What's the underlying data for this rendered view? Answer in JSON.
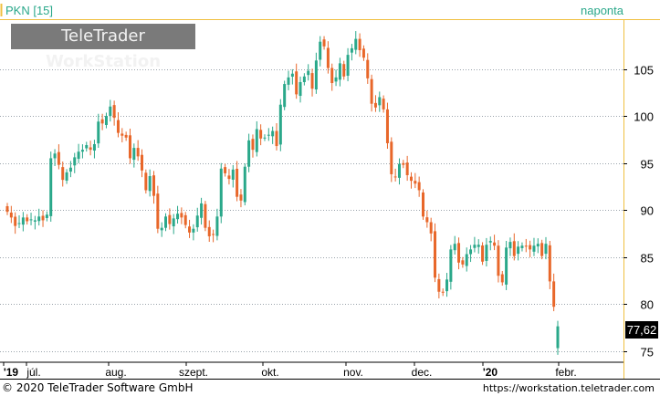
{
  "header": {
    "instrument_label": "PKN [15]",
    "period_label": "naponta"
  },
  "watermark": {
    "brand_regular": "TeleTrader",
    "brand_bold": "WorkStation"
  },
  "footer": {
    "copyright": "© 2020 TeleTrader Software GmbH",
    "url": "https://workstation.teletrader.com"
  },
  "colors": {
    "up": "#2aa88a",
    "down": "#e8672a",
    "grid": "#9aa3ab",
    "axis_border": "#f0c040",
    "last_price_bg": "#000000"
  },
  "chart_data": {
    "type": "candlestick",
    "title": "",
    "instrument": "PKN [15]",
    "interval": "naponta",
    "x_tick_labels": [
      "'19",
      "júl.",
      "aug.",
      "szept.",
      "okt.",
      "nov.",
      "dec.",
      "'20",
      "febr."
    ],
    "y_ticks": [
      75,
      80,
      85,
      90,
      95,
      100,
      105
    ],
    "ylim": [
      73.8,
      110.2
    ],
    "last_price": "77,62",
    "grid": true,
    "y_axis_side": "right",
    "close": [
      89.8,
      89.2,
      88.3,
      88.6,
      89.2,
      88.8,
      89.0,
      88.9,
      89.3,
      88.9,
      89.5,
      95.5,
      96.0,
      94.8,
      93.2,
      94.0,
      94.5,
      95.6,
      96.2,
      96.4,
      96.9,
      96.4,
      97.0,
      99.4,
      99.2,
      100.0,
      101.0,
      99.8,
      98.2,
      97.9,
      97.7,
      95.5,
      96.6,
      95.7,
      94.2,
      92.1,
      93.6,
      91.5,
      88.0,
      88.1,
      89.3,
      88.5,
      89.1,
      89.6,
      89.2,
      88.4,
      87.6,
      88.0,
      89.4,
      90.7,
      88.1,
      87.2,
      87.4,
      89.3,
      94.4,
      93.9,
      93.3,
      94.3,
      91.4,
      91.0,
      94.6,
      97.4,
      96.4,
      98.6,
      97.6,
      97.7,
      98.0,
      98.4,
      96.8,
      101.2,
      103.4,
      104.1,
      104.5,
      102.3,
      103.6,
      104.2,
      104.8,
      102.9,
      105.9,
      107.9,
      107.4,
      105.1,
      103.5,
      104.1,
      105.6,
      104.2,
      106.5,
      107.2,
      108.2,
      107.0,
      106.2,
      104.0,
      101.3,
      100.9,
      102.0,
      100.7,
      97.1,
      93.8,
      93.5,
      94.9,
      94.8,
      93.7,
      93.1,
      92.8,
      92.1,
      89.3,
      88.7,
      87.5,
      82.8,
      81.3,
      81.2,
      82.6,
      85.8,
      86.4,
      84.4,
      84.2,
      85.3,
      85.8,
      86.3,
      86.3,
      84.5,
      86.3,
      86.7,
      86.2,
      83.0,
      82.3,
      86.0,
      86.6,
      85.1,
      86.1,
      86.2,
      86.1,
      85.8,
      86.2,
      86.4,
      85.1,
      86.4,
      82.4,
      79.7,
      77.62
    ]
  }
}
